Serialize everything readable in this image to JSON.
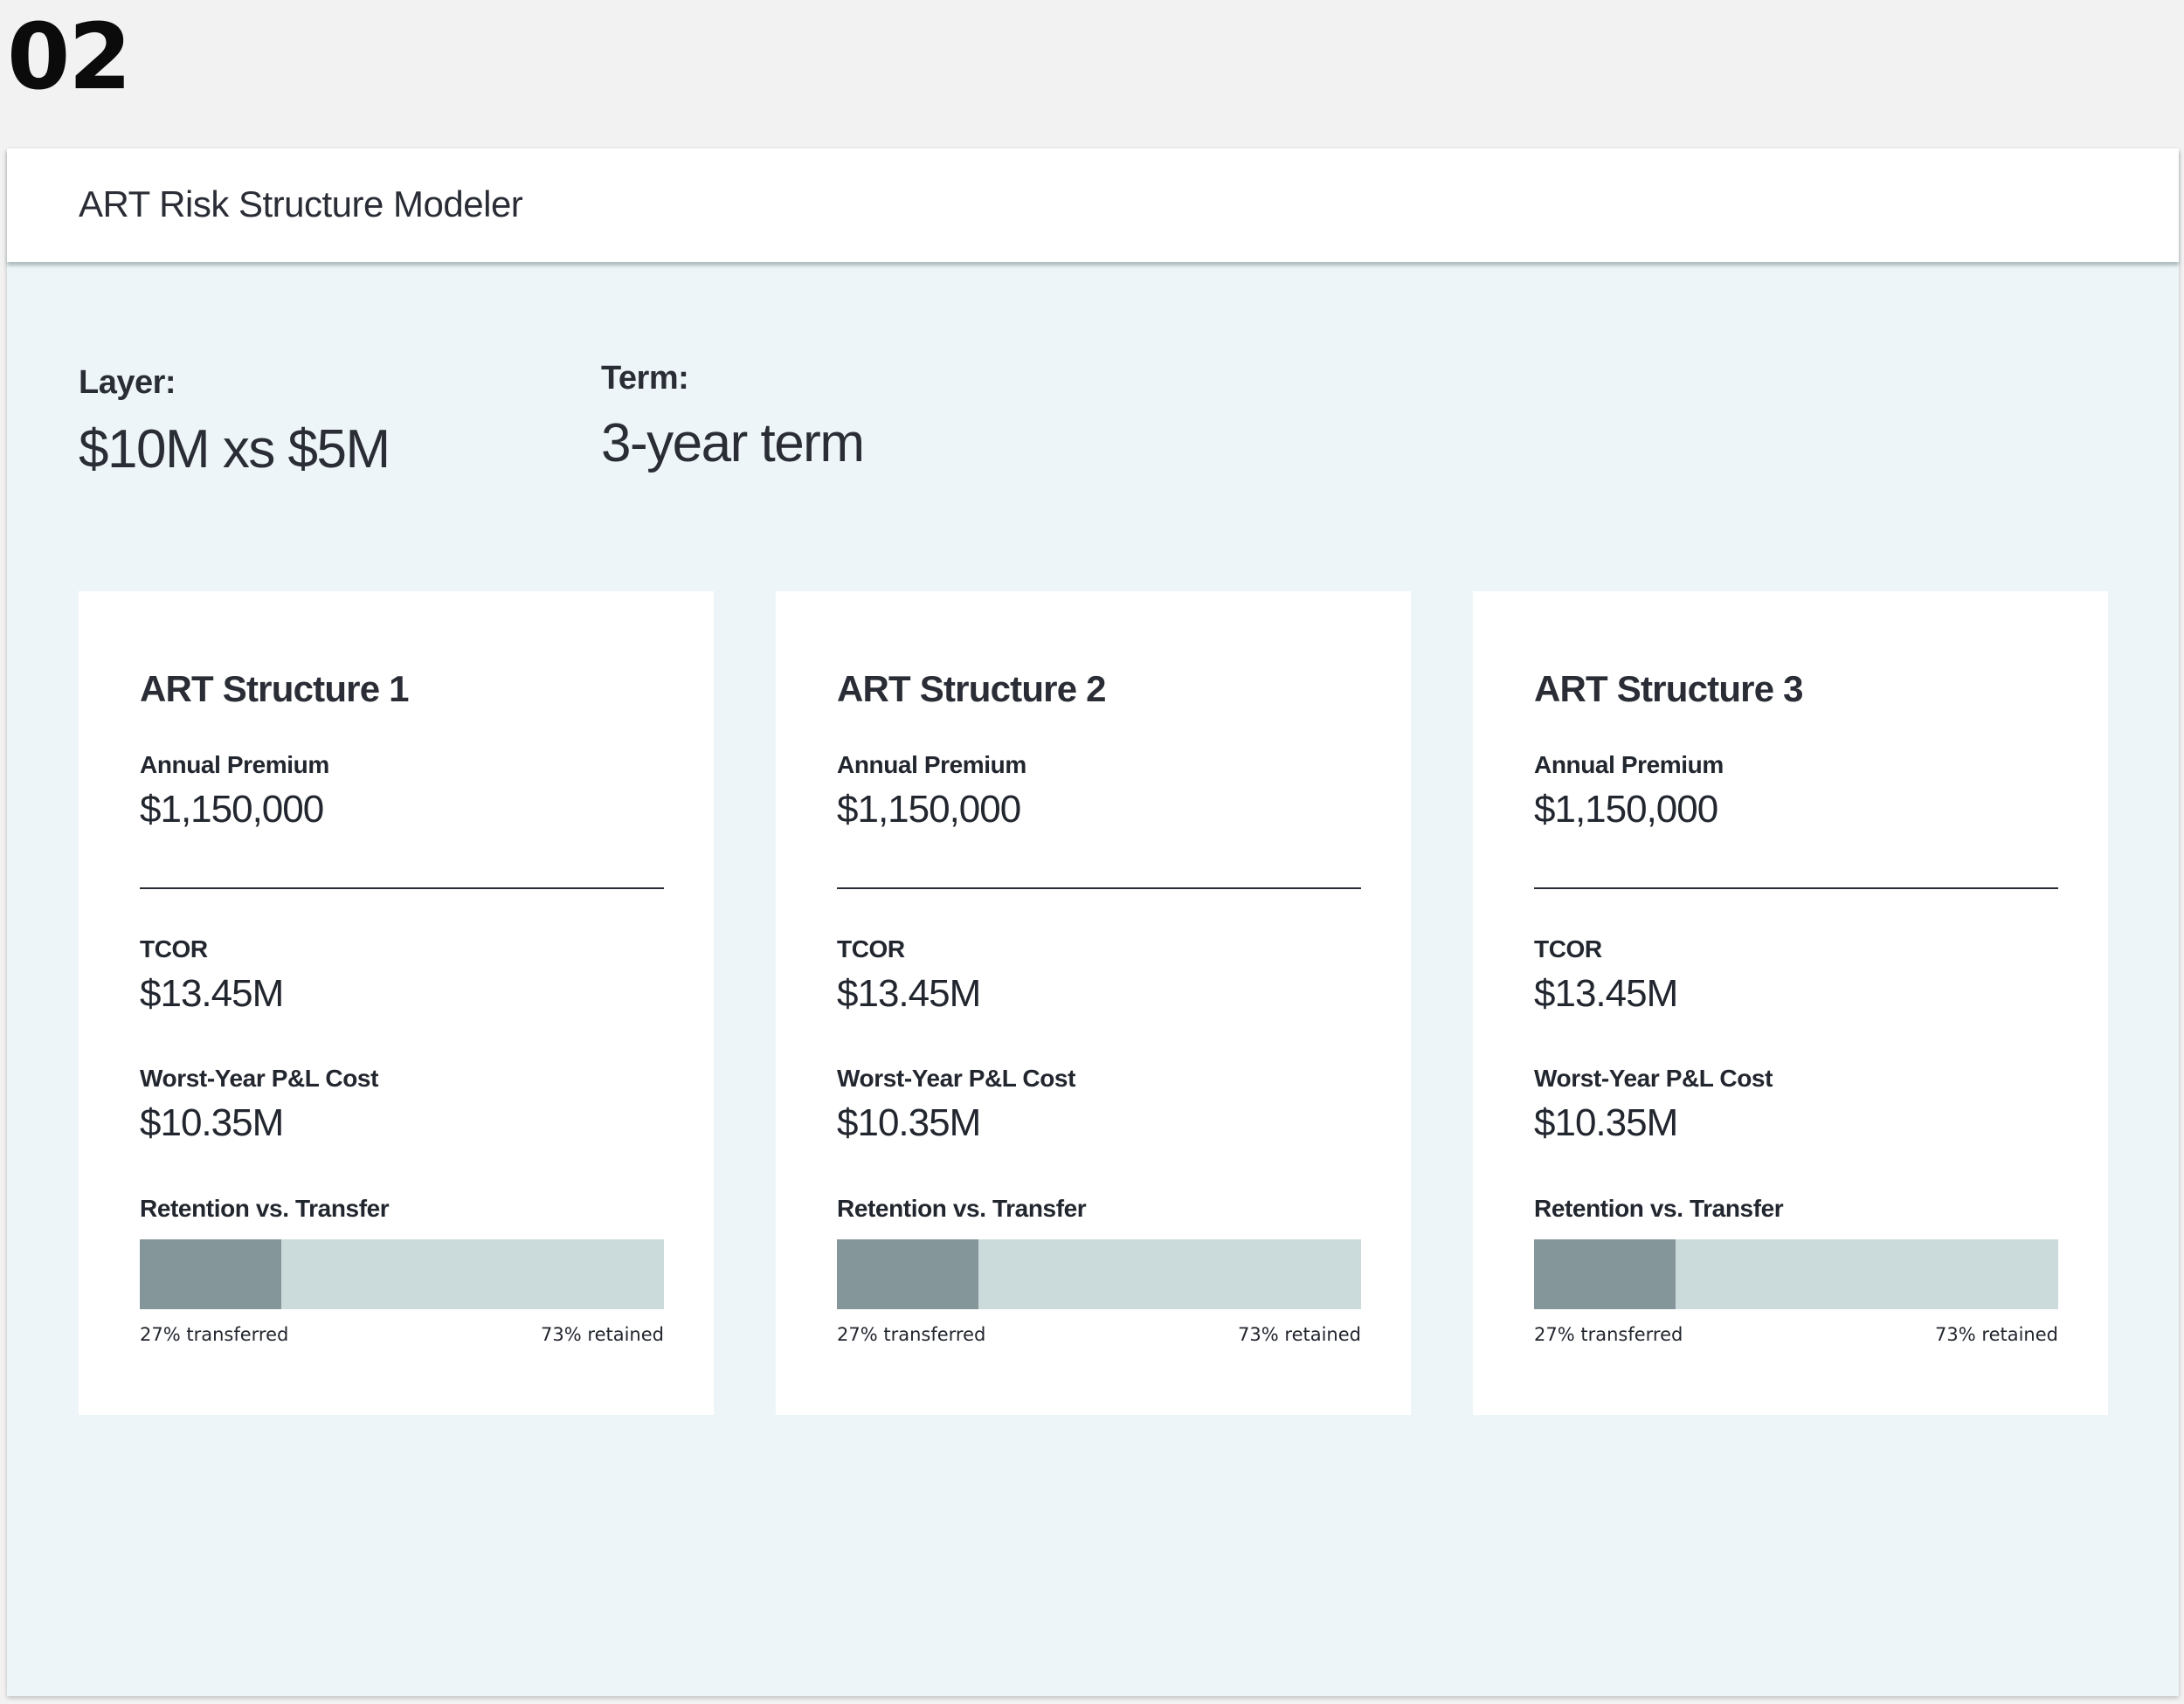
{
  "slide": {
    "number": "02"
  },
  "app": {
    "title": "ART Risk Structure Modeler"
  },
  "summary": {
    "layer": {
      "label": "Layer:",
      "value": "$10M xs $5M"
    },
    "term": {
      "label": "Term:",
      "value": "3-year term"
    }
  },
  "colors": {
    "background": "#eef5f8",
    "card": "#ffffff",
    "transferred": "#85969b",
    "retained": "#cbdbdc"
  },
  "structures": [
    {
      "title": "ART Structure 1",
      "premium_label": "Annual Premium",
      "premium_value": "$1,150,000",
      "tcor_label": "TCOR",
      "tcor_value": "$13.45M",
      "worst_label": "Worst-Year P&L Cost",
      "worst_value": "$10.35M",
      "split_label": "Retention vs. Transfer",
      "transferred_pct": 27,
      "retained_pct": 73,
      "transferred_caption": "27% transferred",
      "retained_caption": "73% retained"
    },
    {
      "title": "ART Structure 2",
      "premium_label": "Annual Premium",
      "premium_value": "$1,150,000",
      "tcor_label": "TCOR",
      "tcor_value": "$13.45M",
      "worst_label": "Worst-Year P&L Cost",
      "worst_value": "$10.35M",
      "split_label": "Retention vs. Transfer",
      "transferred_pct": 27,
      "retained_pct": 73,
      "transferred_caption": "27% transferred",
      "retained_caption": "73% retained"
    },
    {
      "title": "ART Structure 3",
      "premium_label": "Annual Premium",
      "premium_value": "$1,150,000",
      "tcor_label": "TCOR",
      "tcor_value": "$13.45M",
      "worst_label": "Worst-Year P&L Cost",
      "worst_value": "$10.35M",
      "split_label": "Retention vs. Transfer",
      "transferred_pct": 27,
      "retained_pct": 73,
      "transferred_caption": "27% transferred",
      "retained_caption": "73% retained"
    }
  ]
}
